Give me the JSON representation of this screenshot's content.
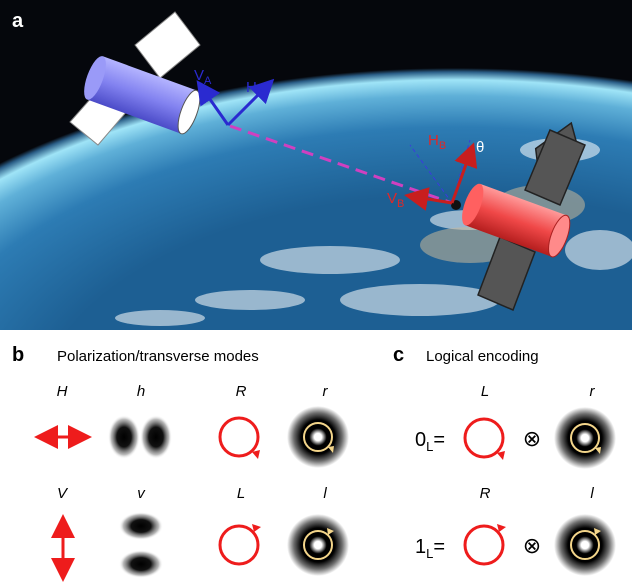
{
  "panel_a": {
    "label": "a",
    "satellite_a": {
      "v_label": "V",
      "v_sub": "A",
      "h_label": "H",
      "h_sub": "A"
    },
    "satellite_b": {
      "v_label": "V",
      "v_sub": "B",
      "h_label": "H",
      "h_sub": "B",
      "angle_label": "θ"
    },
    "colors": {
      "sat_a_body": "#8c8cf0",
      "sat_a_arrows": "#2a2ad0",
      "sat_b_body": "#f05050",
      "sat_b_arrows": "#c81e1e",
      "link": "#d040c0",
      "space": "#05070c",
      "atmosphere": "#7fd6f2"
    }
  },
  "panel_b": {
    "label": "b",
    "title": "Polarization/transverse modes",
    "row1": {
      "pol_label": "H",
      "mode_label": "h",
      "circ_pol_label": "R",
      "circ_mode_label": "r"
    },
    "row2": {
      "pol_label": "V",
      "mode_label": "v",
      "circ_pol_label": "L",
      "circ_mode_label": "l"
    }
  },
  "panel_c": {
    "label": "c",
    "title": "Logical encoding",
    "row1": {
      "pol_label": "L",
      "mode_label": "r",
      "state_main": "0",
      "state_sub": "L",
      "equals": "=",
      "tensor": "⊗"
    },
    "row2": {
      "pol_label": "R",
      "mode_label": "l",
      "state_main": "1",
      "state_sub": "L",
      "equals": "=",
      "tensor": "⊗"
    }
  },
  "colors": {
    "pol_red": "#ee1c1c",
    "vortex_arrow": "#f3d58a"
  }
}
